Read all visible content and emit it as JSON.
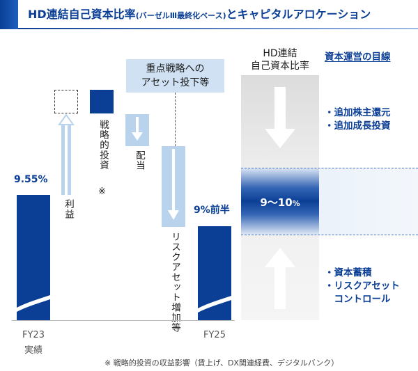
{
  "header": {
    "title_main": "HD連結自己資本比率",
    "title_paren": "(バーゼルⅢ最終化ベース)",
    "title_tail": "とキャピタルアロケーション"
  },
  "waterfall": {
    "start_value_label": "9.55%",
    "end_value_label": "9%前半",
    "profit_label": "利益",
    "strategic_investment_label": "戦略的投資",
    "note_mark": "※",
    "dividend_label": "配当",
    "risk_asset_label": "リスクアセット増加等",
    "callout_line1": "重点戦略への",
    "callout_line2": "アセット投下等",
    "x_fy23": "FY23",
    "x_fy23_sub": "実績",
    "x_fy25": "FY25"
  },
  "right_panel": {
    "col_header_line1": "HD連結",
    "col_header_line2": "自己資本比率",
    "target_header": "資本運営の目線",
    "band_label_main": "9～10",
    "band_label_unit": "%",
    "upper_items": [
      "・追加株主還元",
      "・追加成長投資"
    ],
    "lower_items": [
      "・資本蓄積",
      "・リスクアセット",
      "　コントロール"
    ]
  },
  "footnote": "※ 戦略的投資の収益影響（賃上げ、DX関連経費、デジタルバンク）",
  "colors": {
    "brand_dark": "#0b3f95",
    "light_blue": "#b9d3ec",
    "callout_bg": "#cfe1f2"
  }
}
